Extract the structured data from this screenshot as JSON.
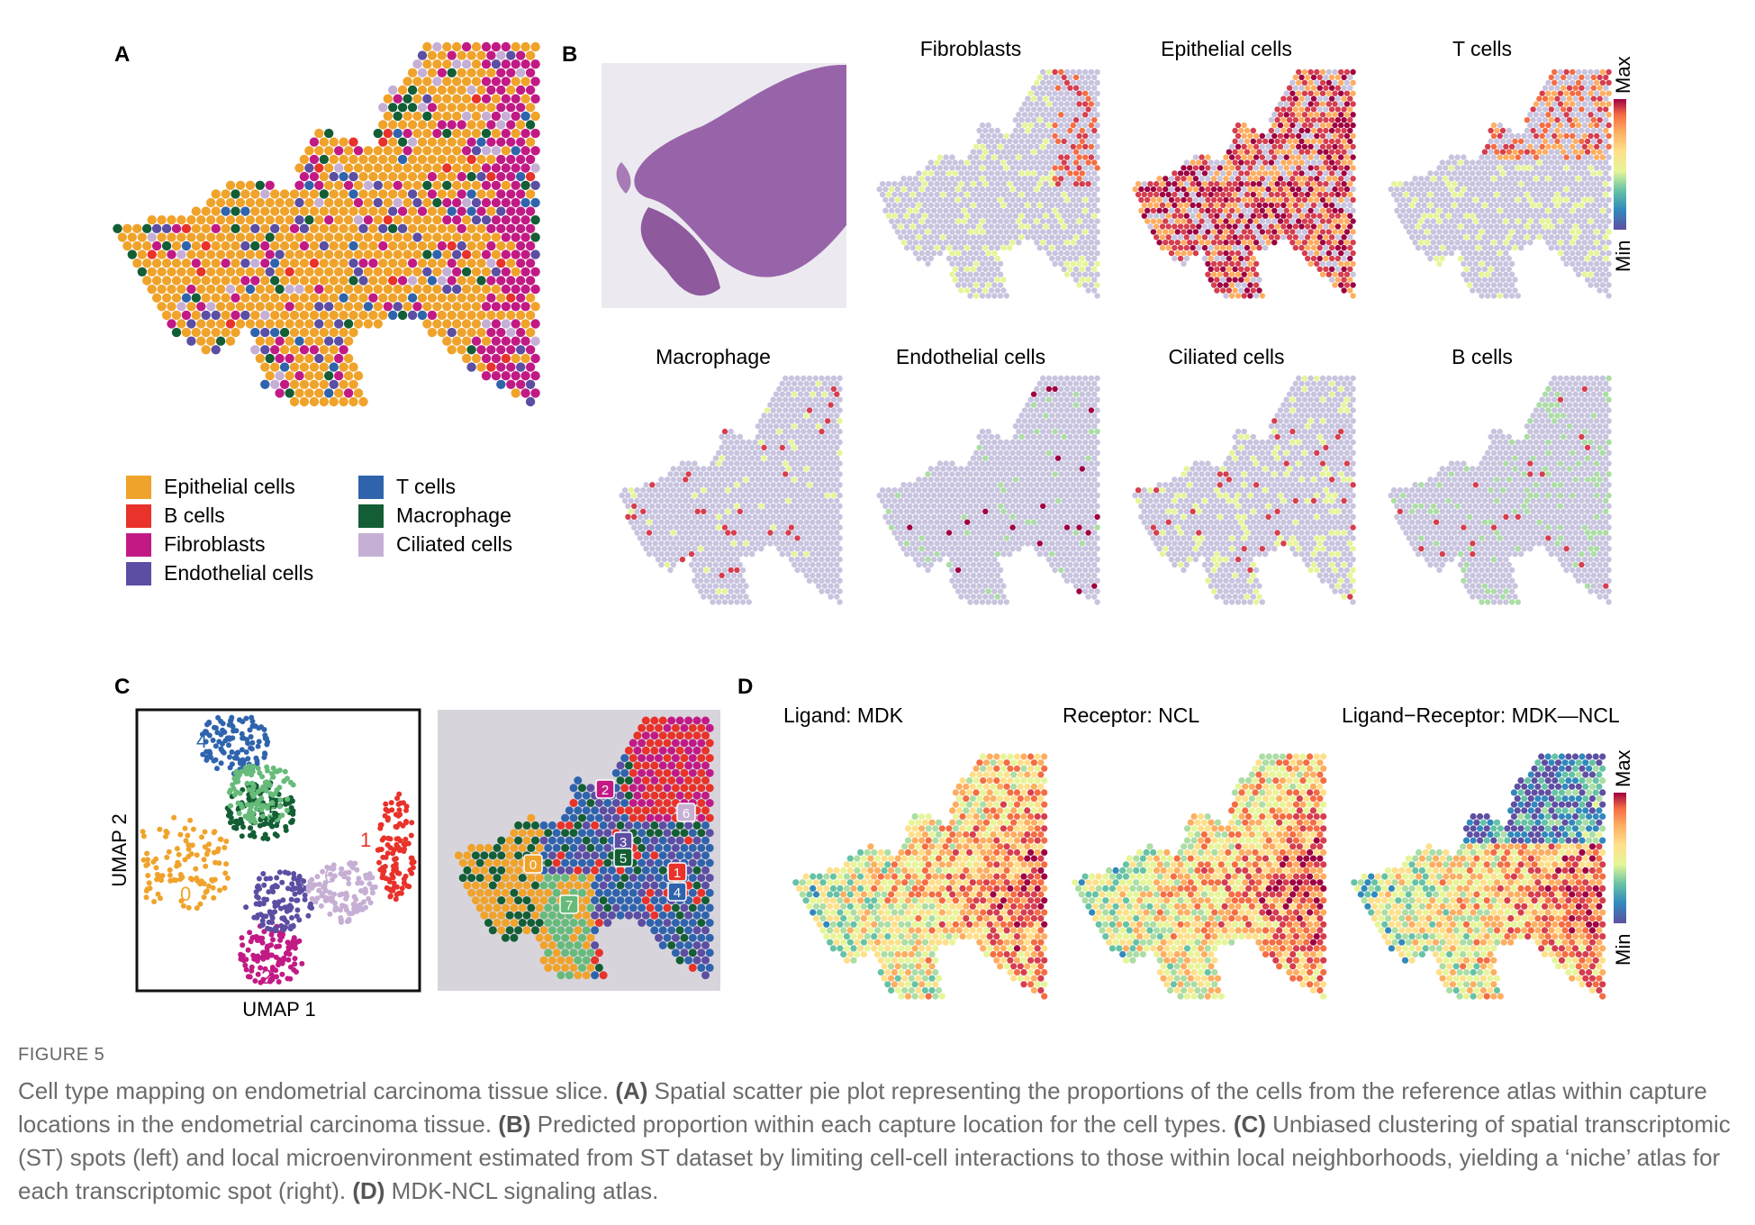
{
  "panels": {
    "A": {
      "label": "A",
      "legend": [
        {
          "name": "Epithelial cells",
          "color": "#f0a32b"
        },
        {
          "name": "B cells",
          "color": "#e8322a"
        },
        {
          "name": "Fibroblasts",
          "color": "#c21a85"
        },
        {
          "name": "Endothelial cells",
          "color": "#5b4ea3"
        },
        {
          "name": "T cells",
          "color": "#2f64ad"
        },
        {
          "name": "Macrophage",
          "color": "#135e35"
        },
        {
          "name": "Ciliated cells",
          "color": "#c6afd4"
        }
      ]
    },
    "B": {
      "label": "B",
      "maps": [
        "Fibroblasts",
        "Epithelial cells",
        "T cells",
        "Macrophage",
        "Endothelial cells",
        "Ciliated cells",
        "B cells"
      ],
      "scale_max": "Max",
      "scale_min": "Min"
    },
    "C": {
      "label": "C",
      "xlabel": "UMAP 1",
      "ylabel": "UMAP 2",
      "clusters": [
        {
          "id": "0",
          "color": "#f0a32b"
        },
        {
          "id": "1",
          "color": "#e8322a"
        },
        {
          "id": "2",
          "color": "#c21a85"
        },
        {
          "id": "3",
          "color": "#5b4ea3"
        },
        {
          "id": "4",
          "color": "#2f64ad"
        },
        {
          "id": "5",
          "color": "#135e35"
        },
        {
          "id": "6",
          "color": "#c6afd4"
        },
        {
          "id": "7",
          "color": "#67bb7a"
        }
      ]
    },
    "D": {
      "label": "D",
      "maps": [
        "Ligand: MDK",
        "Receptor: NCL",
        "Ligand−Receptor: MDK—NCL"
      ],
      "scale_max": "Max",
      "scale_min": "Min"
    }
  },
  "caption": {
    "figure_label": "FIGURE 5",
    "text": "Cell type mapping on endometrial carcinoma tissue slice. (A) Spatial scatter pie plot representing the proportions of the cells from the reference atlas within capture locations in the endometrial carcinoma tissue. (B) Predicted proportion within each capture location for the cell types. (C) Unbiased clustering of spatial transcriptomic (ST) spots (left) and local microenvironment estimated from ST dataset by limiting cell-cell interactions to those within local neighborhoods, yielding a ‘niche’ atlas for each transcriptomic spot (right). (D) MDK-NCL signaling atlas."
  },
  "colors": {
    "spectral": [
      "#5e4fa2",
      "#3288bd",
      "#66c2a5",
      "#abdda4",
      "#e6f598",
      "#fee08b",
      "#fdae61",
      "#f46d43",
      "#d53e4f",
      "#9e0142"
    ],
    "tissue_bg": "#c9c5d2",
    "tissue_purple": "#8a4c9c"
  }
}
